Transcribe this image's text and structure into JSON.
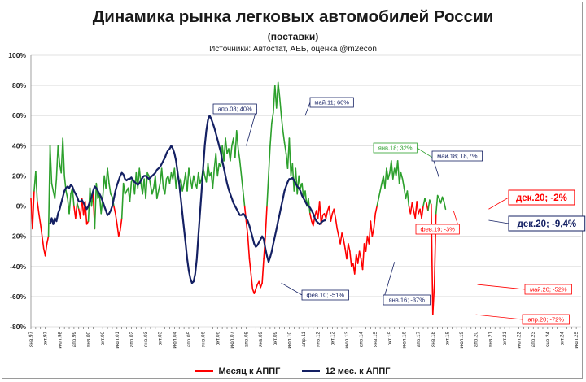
{
  "title": "Динамика рынка легковых автомобилей России",
  "subtitle": "(поставки)",
  "sources": "Источники: Автостат, АЕБ, оценка @m2econ",
  "colors": {
    "positive": "#2ca02c",
    "negative": "#ff0000",
    "rolling": "#142063",
    "grid": "#d9d9d9"
  },
  "legend": {
    "monthly": "Месяц к АППГ",
    "rolling": "12 мес. к АППГ"
  },
  "chart_data": {
    "type": "line",
    "ylim": [
      -80,
      100
    ],
    "y_ticks": [
      "100%",
      "80%",
      "60%",
      "40%",
      "20%",
      "0%",
      "-20%",
      "-40%",
      "-60%",
      "-80%"
    ],
    "x_ticks": [
      "янв.97",
      "апр.97",
      "июл.97",
      "окт.97",
      "янв.98",
      "апр.98",
      "июл.98",
      "окт.98",
      "янв.99",
      "апр.99",
      "июл.99",
      "окт.99",
      "янв.00",
      "апр.00",
      "июл.00",
      "окт.00",
      "янв.01",
      "апр.01",
      "июл.01",
      "окт.01",
      "янв.02",
      "апр.02",
      "июл.02",
      "окт.02",
      "янв.03",
      "апр.03",
      "июл.03",
      "окт.03",
      "янв.04",
      "апр.04",
      "июл.04",
      "окт.04",
      "янв.05",
      "апр.05",
      "июл.05",
      "окт.05",
      "янв.06",
      "апр.06",
      "июл.06",
      "окт.06",
      "янв.07",
      "апр.07",
      "июл.07",
      "окт.07",
      "янв.08",
      "апр.08",
      "июл.08",
      "окт.08",
      "янв.09",
      "апр.09",
      "июл.09",
      "окт.09",
      "янв.10",
      "апр.10",
      "июл.10",
      "окт.10",
      "янв.11",
      "апр.11",
      "июл.11",
      "окт.11",
      "янв.12",
      "апр.12",
      "июл.12",
      "окт.12",
      "янв.13",
      "апр.13",
      "июл.13",
      "окт.13",
      "янв.14",
      "апр.14",
      "июл.14",
      "окт.14",
      "янв.15",
      "апр.15",
      "июл.15",
      "окт.15",
      "янв.16",
      "апр.16",
      "июл.16",
      "окт.16",
      "янв.17",
      "апр.17",
      "июл.17",
      "окт.17",
      "янв.18",
      "апр.18",
      "июл.18",
      "окт.18",
      "янв.19",
      "апр.19",
      "июл.19",
      "окт.19",
      "янв.20",
      "апр.20",
      "июл.20",
      "окт.20",
      "янв.21",
      "апр.21",
      "июл.21",
      "окт.21",
      "янв.22",
      "апр.22",
      "июл.22",
      "окт.22",
      "янв.23",
      "апр.23",
      "июл.23",
      "окт.23",
      "янв.24",
      "апр.24",
      "июл.24",
      "окт.24",
      "янв.25",
      "апр.25",
      "июл.25"
    ],
    "x_labels": [
      "янв.97",
      "окт.97",
      "июл.98",
      "апр.99",
      "янв.00",
      "окт.00",
      "июл.01",
      "апр.02",
      "янв.03",
      "окт.03",
      "июл.04",
      "апр.05",
      "янв.06",
      "окт.06",
      "июл.07",
      "апр.08",
      "янв.09",
      "окт.09",
      "июл.10",
      "апр.11",
      "янв.12",
      "окт.12",
      "июл.13",
      "апр.14",
      "янв.15",
      "окт.15",
      "июл.16",
      "апр.17",
      "янв.18",
      "окт.18",
      "июл.19",
      "апр.20",
      "янв.21",
      "окт.21",
      "июл.22",
      "апр.23",
      "янв.24",
      "окт.24",
      "июл.25"
    ],
    "series": [
      {
        "name": "Месяц к АППГ",
        "x_start": 1997.0,
        "x_step_months": 1,
        "values": [
          5,
          -15,
          10,
          23,
          3,
          -5,
          -12,
          -20,
          -28,
          -33,
          -25,
          -20,
          40,
          15,
          10,
          5,
          18,
          40,
          28,
          22,
          45,
          20,
          10,
          5,
          -5,
          8,
          12,
          0,
          -8,
          2,
          -2,
          -8,
          5,
          -6,
          3,
          -12,
          -10,
          12,
          0,
          8,
          -15,
          15,
          5,
          8,
          -5,
          5,
          20,
          12,
          25,
          15,
          8,
          6,
          0,
          -5,
          -12,
          -20,
          -16,
          -8,
          15,
          8,
          10,
          12,
          3,
          16,
          18,
          8,
          22,
          12,
          25,
          15,
          8,
          18,
          5,
          22,
          20,
          14,
          8,
          12,
          20,
          5,
          10,
          15,
          25,
          12,
          8,
          18,
          20,
          15,
          22,
          18,
          25,
          12,
          22,
          14,
          18,
          10,
          15,
          22,
          10,
          25,
          18,
          12,
          20,
          15,
          12,
          22,
          15,
          18,
          25,
          20,
          16,
          28,
          20,
          22,
          12,
          25,
          35,
          20,
          28,
          26,
          40,
          30,
          45,
          35,
          38,
          30,
          40,
          45,
          32,
          50,
          38,
          30,
          20,
          10,
          0,
          -10,
          -20,
          -35,
          -45,
          -55,
          -58,
          -55,
          -52,
          -50,
          -54,
          -51,
          -35,
          -20,
          0,
          20,
          40,
          55,
          62,
          80,
          65,
          82,
          72,
          60,
          50,
          42,
          35,
          25,
          45,
          20,
          28,
          10,
          25,
          8,
          20,
          12,
          15,
          5,
          10,
          0,
          5,
          -5,
          -10,
          -13,
          -7,
          -3,
          -8,
          3,
          -12,
          -6,
          -5,
          -8,
          -3,
          0,
          -10,
          -5,
          -2,
          -8,
          -15,
          -20,
          -25,
          -18,
          -22,
          -28,
          -35,
          -25,
          -30,
          -40,
          -38,
          -45,
          -32,
          -38,
          -30,
          -35,
          -42,
          -25,
          -30,
          -20,
          -25,
          -10,
          -20,
          -15,
          -5,
          0,
          5,
          10,
          15,
          20,
          12,
          25,
          18,
          22,
          30,
          18,
          25,
          20,
          30,
          15,
          22,
          18,
          12,
          5,
          10,
          0,
          -5,
          2,
          -3,
          -8,
          3,
          -5,
          -2,
          -8,
          0,
          5,
          2,
          -3,
          4,
          1,
          -72,
          -52,
          -5,
          7,
          5,
          2,
          6,
          3,
          -2
        ],
        "color": "mixed-green-red"
      },
      {
        "name": "12 мес. к АППГ",
        "x_start": 1998.0,
        "x_step_months": 1,
        "values": [
          -12,
          -8,
          -12,
          -8,
          -10,
          -5,
          -2,
          2,
          6,
          10,
          12,
          13,
          12,
          14,
          13,
          10,
          8,
          6,
          3,
          3,
          4,
          2,
          0,
          -2,
          0,
          3,
          6,
          10,
          13,
          12,
          10,
          8,
          6,
          3,
          0,
          -3,
          -6,
          -5,
          -3,
          0,
          5,
          10,
          14,
          17,
          20,
          22,
          21,
          18,
          17,
          18,
          18,
          19,
          17,
          16,
          15,
          14,
          15,
          17,
          19,
          20,
          20,
          19,
          18,
          19,
          20,
          21,
          22,
          24,
          25,
          26,
          28,
          30,
          32,
          35,
          37,
          38,
          40,
          38,
          35,
          30,
          22,
          15,
          5,
          -5,
          -15,
          -25,
          -35,
          -43,
          -48,
          -51,
          -50,
          -45,
          -35,
          -20,
          -5,
          10,
          25,
          40,
          50,
          57,
          60,
          58,
          55,
          52,
          48,
          44,
          40,
          36,
          30,
          25,
          20,
          15,
          11,
          8,
          5,
          2,
          0,
          -2,
          -4,
          -6,
          -6,
          -5,
          -6,
          -8,
          -10,
          -13,
          -17,
          -21,
          -25,
          -27,
          -26,
          -24,
          -22,
          -20,
          -22,
          -28,
          -33,
          -37,
          -34,
          -30,
          -25,
          -20,
          -15,
          -10,
          -5,
          0,
          5,
          10,
          13,
          16,
          18,
          18,
          18.7,
          17,
          15,
          13,
          12,
          10,
          7,
          5,
          3,
          1,
          0,
          -1,
          -3,
          -5,
          -8,
          -10,
          -11,
          -12,
          -11,
          -10,
          -9.5,
          -9.4
        ],
        "color": "#142063"
      }
    ],
    "annotations": [
      {
        "label": "апр.08; 40%",
        "x": 2008.25,
        "y": 40,
        "color": "#142063"
      },
      {
        "label": "май.11; 60%",
        "x": 2011.33,
        "y": 60,
        "color": "#142063"
      },
      {
        "label": "фев.10; -51%",
        "x": 2010.08,
        "y": -51,
        "color": "#142063"
      },
      {
        "label": "янв.16; -37%",
        "x": 2016.0,
        "y": -37,
        "color": "#142063"
      },
      {
        "label": "янв.18; 32%",
        "x": 2018.0,
        "y": 32,
        "color": "#2ca02c"
      },
      {
        "label": "май.18; 18,7%",
        "x": 2018.33,
        "y": 18.7,
        "color": "#142063"
      },
      {
        "label": "фев.19; -3%",
        "x": 2019.08,
        "y": -3,
        "color": "#ff0000"
      },
      {
        "label": "май.20; -52%",
        "x": 2020.33,
        "y": -52,
        "color": "#ff0000"
      },
      {
        "label": "апр.20; -72%",
        "x": 2020.25,
        "y": -72,
        "color": "#ff0000"
      },
      {
        "label": "дек.20; -2%",
        "x": 2020.92,
        "y": -2,
        "color": "#ff0000",
        "big": true
      },
      {
        "label": "дек.20; -9,4%",
        "x": 2020.92,
        "y": -9.4,
        "color": "#142063",
        "big": true
      }
    ],
    "grid": true,
    "legend_position": "bottom"
  }
}
